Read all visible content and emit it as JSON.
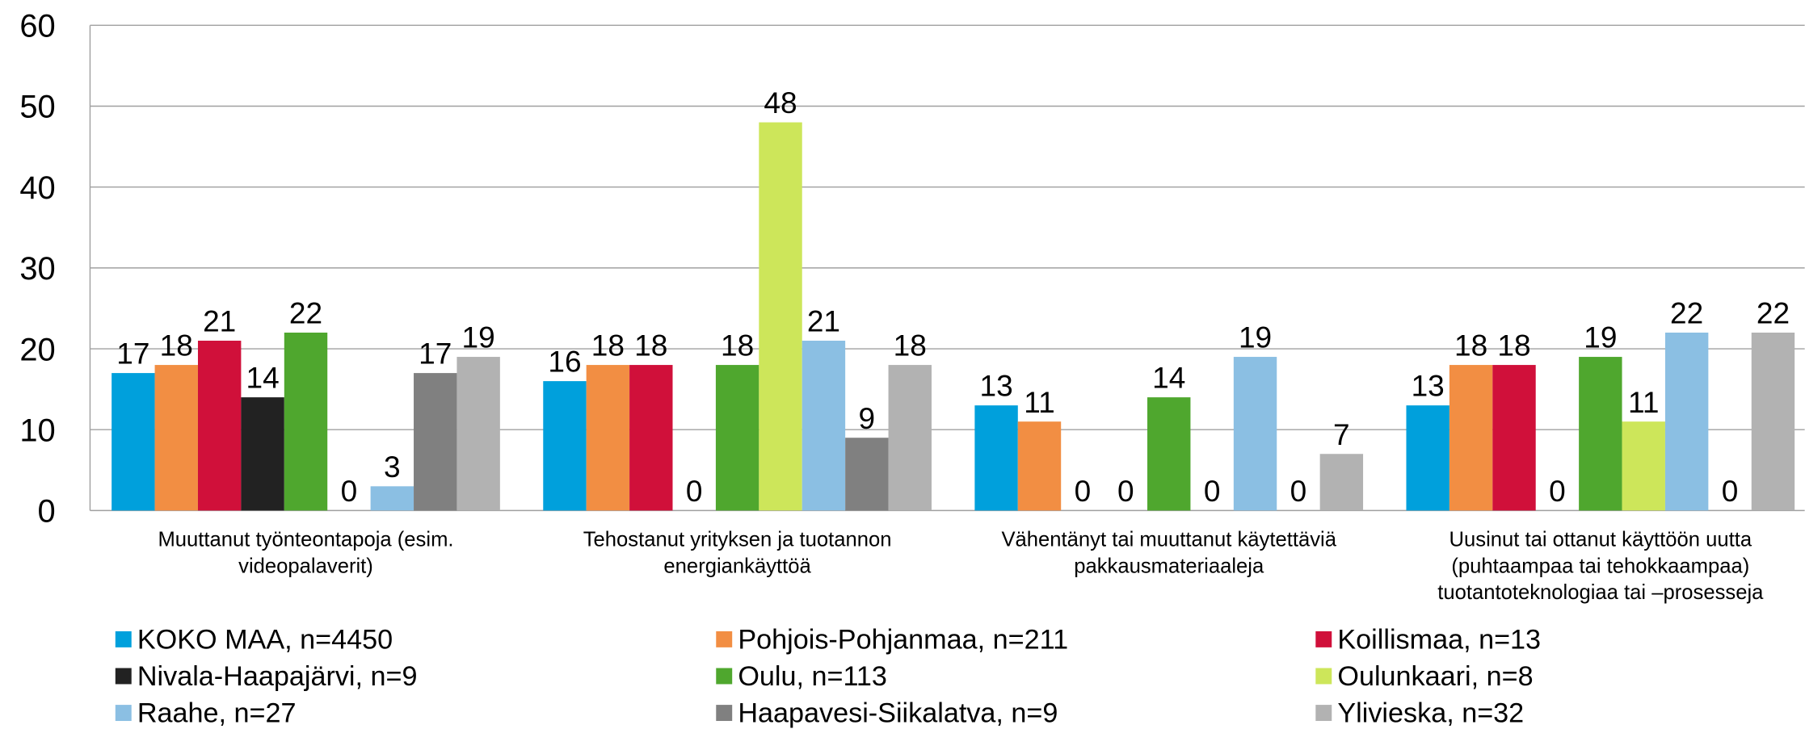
{
  "chart_data": {
    "type": "bar",
    "categories": [
      "Muuttanut työnteontapoja (esim.\nvideopalaverit)",
      "Tehostanut yrityksen ja tuotannon\nenergiankäyttöä",
      "Vähentänyt tai muuttanut käytettäviä\npakkausmateriaaleja",
      "Uusinut tai ottanut käyttöön uutta\n(puhtaampaa tai tehokkaampaa)\ntuotantoteknologiaa tai –prosesseja"
    ],
    "series": [
      {
        "name": "KOKO MAA, n=4450",
        "color": "#00a0dc",
        "values": [
          17,
          16,
          13,
          13
        ]
      },
      {
        "name": "Pohjois-Pohjanmaa, n=211",
        "color": "#f28e43",
        "values": [
          18,
          18,
          11,
          18
        ]
      },
      {
        "name": "Koillismaa, n=13",
        "color": "#d0103a",
        "values": [
          21,
          18,
          0,
          18
        ]
      },
      {
        "name": "Nivala-Haapajärvi, n=9",
        "color": "#222222",
        "values": [
          14,
          0,
          0,
          0
        ]
      },
      {
        "name": "Oulu, n=113",
        "color": "#4fa72e",
        "values": [
          22,
          18,
          14,
          19
        ]
      },
      {
        "name": "Oulunkaari, n=8",
        "color": "#cde65a",
        "values": [
          0,
          48,
          0,
          11
        ]
      },
      {
        "name": "Raahe, n=27",
        "color": "#8bbfe3",
        "values": [
          3,
          21,
          19,
          22
        ]
      },
      {
        "name": "Haapavesi-Siikalatva, n=9",
        "color": "#808080",
        "values": [
          17,
          9,
          0,
          0
        ]
      },
      {
        "name": "Ylivieska, n=32",
        "color": "#b2b2b2",
        "values": [
          19,
          18,
          7,
          22
        ]
      }
    ],
    "ylim": [
      0,
      60
    ],
    "yticks": [
      0,
      10,
      20,
      30,
      40,
      50,
      60
    ],
    "grid": true
  }
}
